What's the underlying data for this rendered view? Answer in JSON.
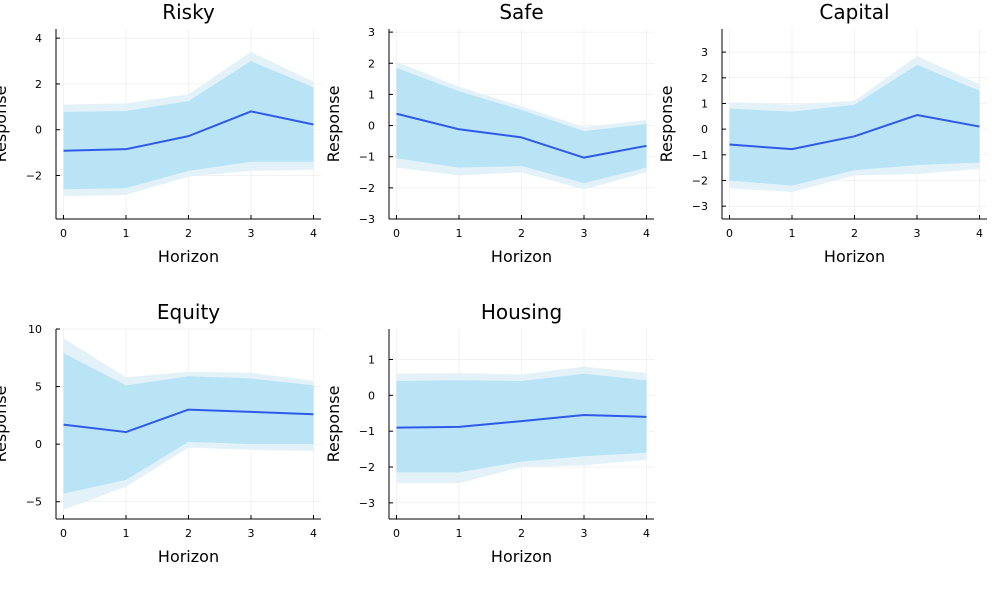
{
  "colors": {
    "line": "#2f5ae8",
    "band_inner": "#b8e4f6",
    "band_outer": "#e3f2f9"
  },
  "chart_data": [
    {
      "type": "line",
      "title": "Risky",
      "xlabel": "Horizon",
      "ylabel": "Response",
      "x": [
        0,
        1,
        2,
        3,
        4
      ],
      "xlim": [
        -0.12,
        4.12
      ],
      "ylim": [
        -3.9,
        4.4
      ],
      "xticks": [
        0,
        1,
        2,
        3,
        4
      ],
      "yticks": [
        -2,
        0,
        2,
        4
      ],
      "grid": true,
      "series": [
        {
          "values": [
            -0.92,
            -0.85,
            -0.28,
            0.8,
            0.23
          ]
        }
      ],
      "bands": {
        "outer_upper": [
          1.1,
          1.15,
          1.55,
          3.4,
          2.1
        ],
        "outer_lower": [
          -2.9,
          -2.85,
          -2.05,
          -1.8,
          -1.75
        ],
        "inner_upper": [
          0.78,
          0.82,
          1.25,
          3.0,
          1.85
        ],
        "inner_lower": [
          -2.6,
          -2.55,
          -1.8,
          -1.4,
          -1.4
        ]
      }
    },
    {
      "type": "line",
      "title": "Safe",
      "xlabel": "Horizon",
      "ylabel": "Response",
      "x": [
        0,
        1,
        2,
        3,
        4
      ],
      "xlim": [
        -0.12,
        4.12
      ],
      "ylim": [
        -3.0,
        3.1
      ],
      "xticks": [
        0,
        1,
        2,
        3,
        4
      ],
      "yticks": [
        -3,
        -2,
        -1,
        0,
        1,
        2,
        3
      ],
      "grid": true,
      "series": [
        {
          "values": [
            0.38,
            -0.12,
            -0.38,
            -1.03,
            -0.65
          ]
        }
      ],
      "bands": {
        "outer_upper": [
          2.05,
          1.25,
          0.62,
          -0.05,
          0.18
        ],
        "outer_lower": [
          -1.35,
          -1.6,
          -1.5,
          -2.05,
          -1.5
        ],
        "inner_upper": [
          1.85,
          1.1,
          0.5,
          -0.18,
          0.05
        ],
        "inner_lower": [
          -1.05,
          -1.35,
          -1.3,
          -1.85,
          -1.35
        ]
      }
    },
    {
      "type": "line",
      "title": "Capital",
      "xlabel": "Horizon",
      "ylabel": "Response",
      "x": [
        0,
        1,
        2,
        3,
        4
      ],
      "xlim": [
        -0.12,
        4.12
      ],
      "ylim": [
        -3.5,
        3.9
      ],
      "xticks": [
        0,
        1,
        2,
        3,
        4
      ],
      "yticks": [
        -3,
        -2,
        -1,
        0,
        1,
        2,
        3
      ],
      "grid": true,
      "series": [
        {
          "values": [
            -0.6,
            -0.78,
            -0.28,
            0.55,
            0.1
          ]
        }
      ],
      "bands": {
        "outer_upper": [
          1.05,
          0.95,
          1.1,
          2.85,
          1.75
        ],
        "outer_lower": [
          -2.3,
          -2.45,
          -1.8,
          -1.75,
          -1.55
        ],
        "inner_upper": [
          0.8,
          0.68,
          0.95,
          2.5,
          1.5
        ],
        "inner_lower": [
          -2.0,
          -2.2,
          -1.6,
          -1.4,
          -1.3
        ]
      }
    },
    {
      "type": "line",
      "title": "Equity",
      "xlabel": "Horizon",
      "ylabel": "Response",
      "x": [
        0,
        1,
        2,
        3,
        4
      ],
      "xlim": [
        -0.12,
        4.12
      ],
      "ylim": [
        -6.5,
        10.0
      ],
      "xticks": [
        0,
        1,
        2,
        3,
        4
      ],
      "yticks": [
        -5,
        0,
        5,
        10
      ],
      "grid": true,
      "series": [
        {
          "values": [
            1.7,
            1.05,
            3.0,
            2.8,
            2.6
          ]
        }
      ],
      "bands": {
        "outer_upper": [
          9.2,
          5.8,
          6.3,
          6.2,
          5.5
        ],
        "outer_lower": [
          -5.7,
          -3.7,
          -0.3,
          -0.5,
          -0.6
        ],
        "inner_upper": [
          7.9,
          5.1,
          5.9,
          5.7,
          5.1
        ],
        "inner_lower": [
          -4.3,
          -3.1,
          0.2,
          0.0,
          0.0
        ]
      }
    },
    {
      "type": "line",
      "title": "Housing",
      "xlabel": "Horizon",
      "ylabel": "Response",
      "x": [
        0,
        1,
        2,
        3,
        4
      ],
      "xlim": [
        -0.12,
        4.12
      ],
      "ylim": [
        -3.45,
        1.85
      ],
      "xticks": [
        0,
        1,
        2,
        3,
        4
      ],
      "yticks": [
        -3,
        -2,
        -1,
        0,
        1
      ],
      "grid": true,
      "series": [
        {
          "values": [
            -0.9,
            -0.88,
            -0.72,
            -0.55,
            -0.6
          ]
        }
      ],
      "bands": {
        "outer_upper": [
          0.6,
          0.62,
          0.58,
          0.8,
          0.62
        ],
        "outer_lower": [
          -2.45,
          -2.45,
          -2.0,
          -1.95,
          -1.8
        ],
        "inner_upper": [
          0.4,
          0.42,
          0.4,
          0.6,
          0.42
        ],
        "inner_lower": [
          -2.15,
          -2.15,
          -1.85,
          -1.7,
          -1.6
        ]
      }
    }
  ]
}
